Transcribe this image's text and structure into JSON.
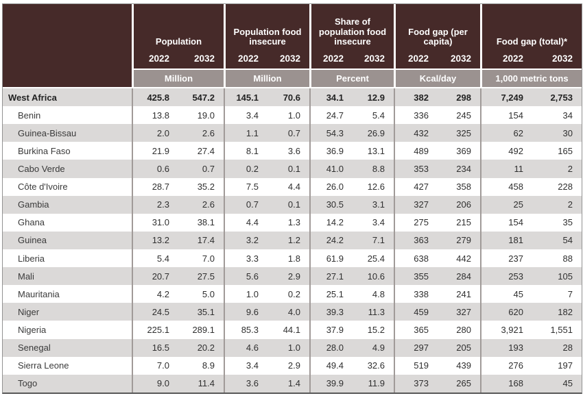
{
  "chart_data": {
    "type": "table",
    "region_scope": "West Africa food security indicators, 2022 vs 2032",
    "years": [
      "2022",
      "2032"
    ],
    "column_groups": [
      {
        "label": "Population",
        "unit": "Million"
      },
      {
        "label": "Population food insecure",
        "unit": "Million"
      },
      {
        "label": "Share of population food insecure",
        "unit": "Percent"
      },
      {
        "label": "Food gap (per capita)",
        "unit": "Kcal/day"
      },
      {
        "label": "Food gap (total)*",
        "unit": "1,000 metric tons"
      }
    ],
    "rows": [
      {
        "name": "West Africa",
        "level": "region",
        "bold": true,
        "values": [
          "425.8",
          "547.2",
          "145.1",
          "70.6",
          "34.1",
          "12.9",
          "382",
          "298",
          "7,249",
          "2,753"
        ]
      },
      {
        "name": "Benin",
        "level": "country",
        "bold": false,
        "values": [
          "13.8",
          "19.0",
          "3.4",
          "1.0",
          "24.7",
          "5.4",
          "336",
          "245",
          "154",
          "34"
        ]
      },
      {
        "name": "Guinea-Bissau",
        "level": "country",
        "bold": false,
        "values": [
          "2.0",
          "2.6",
          "1.1",
          "0.7",
          "54.3",
          "26.9",
          "432",
          "325",
          "62",
          "30"
        ]
      },
      {
        "name": "Burkina Faso",
        "level": "country",
        "bold": false,
        "values": [
          "21.9",
          "27.4",
          "8.1",
          "3.6",
          "36.9",
          "13.1",
          "489",
          "369",
          "492",
          "165"
        ]
      },
      {
        "name": "Cabo Verde",
        "level": "country",
        "bold": false,
        "values": [
          "0.6",
          "0.7",
          "0.2",
          "0.1",
          "41.0",
          "8.8",
          "353",
          "234",
          "11",
          "2"
        ]
      },
      {
        "name": "Côte d'Ivoire",
        "level": "country",
        "bold": false,
        "values": [
          "28.7",
          "35.2",
          "7.5",
          "4.4",
          "26.0",
          "12.6",
          "427",
          "358",
          "458",
          "228"
        ]
      },
      {
        "name": "Gambia",
        "level": "country",
        "bold": false,
        "values": [
          "2.3",
          "2.6",
          "0.7",
          "0.1",
          "30.5",
          "3.1",
          "327",
          "206",
          "25",
          "2"
        ]
      },
      {
        "name": "Ghana",
        "level": "country",
        "bold": false,
        "values": [
          "31.0",
          "38.1",
          "4.4",
          "1.3",
          "14.2",
          "3.4",
          "275",
          "215",
          "154",
          "35"
        ]
      },
      {
        "name": "Guinea",
        "level": "country",
        "bold": false,
        "values": [
          "13.2",
          "17.4",
          "3.2",
          "1.2",
          "24.2",
          "7.1",
          "363",
          "279",
          "181",
          "54"
        ]
      },
      {
        "name": "Liberia",
        "level": "country",
        "bold": false,
        "values": [
          "5.4",
          "7.0",
          "3.3",
          "1.8",
          "61.9",
          "25.4",
          "638",
          "442",
          "237",
          "88"
        ]
      },
      {
        "name": "Mali",
        "level": "country",
        "bold": false,
        "values": [
          "20.7",
          "27.5",
          "5.6",
          "2.9",
          "27.1",
          "10.6",
          "355",
          "284",
          "253",
          "105"
        ]
      },
      {
        "name": "Mauritania",
        "level": "country",
        "bold": false,
        "values": [
          "4.2",
          "5.0",
          "1.0",
          "0.2",
          "25.1",
          "4.8",
          "338",
          "241",
          "45",
          "7"
        ]
      },
      {
        "name": "Niger",
        "level": "country",
        "bold": false,
        "values": [
          "24.5",
          "35.1",
          "9.6",
          "4.0",
          "39.3",
          "11.3",
          "459",
          "327",
          "620",
          "182"
        ]
      },
      {
        "name": "Nigeria",
        "level": "country",
        "bold": false,
        "values": [
          "225.1",
          "289.1",
          "85.3",
          "44.1",
          "37.9",
          "15.2",
          "365",
          "280",
          "3,921",
          "1,551"
        ]
      },
      {
        "name": "Senegal",
        "level": "country",
        "bold": false,
        "values": [
          "16.5",
          "20.2",
          "4.6",
          "1.0",
          "28.0",
          "4.9",
          "297",
          "205",
          "193",
          "28"
        ]
      },
      {
        "name": "Sierra Leone",
        "level": "country",
        "bold": false,
        "values": [
          "7.0",
          "8.9",
          "3.4",
          "2.9",
          "49.4",
          "32.6",
          "519",
          "439",
          "276",
          "197"
        ]
      },
      {
        "name": "Togo",
        "level": "country",
        "bold": false,
        "values": [
          "9.0",
          "11.4",
          "3.6",
          "1.4",
          "39.9",
          "11.9",
          "373",
          "265",
          "168",
          "45"
        ]
      }
    ]
  },
  "colors": {
    "header_background": "#462a29",
    "header_text": "#ffffff",
    "units_band_background": "#9b9290",
    "stripe_gray": "#dbd9d8",
    "row_white": "#ffffff",
    "body_text": "#2f2f2f",
    "column_separator": "#a09a98",
    "outer_border": "#919191"
  }
}
